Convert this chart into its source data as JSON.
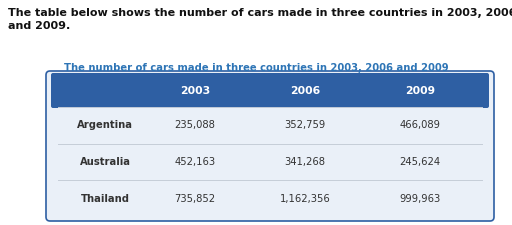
{
  "title": "The number of cars made in three countries in 2003, 2006 and 2009",
  "desc_line1": "The table below shows the number of cars made in three countries in 2003, 2006",
  "desc_line2": "and 2009.",
  "header": [
    "",
    "2003",
    "2006",
    "2009"
  ],
  "rows": [
    [
      "Argentina",
      "235,088",
      "352,759",
      "466,089"
    ],
    [
      "Australia",
      "452,163",
      "341,268",
      "245,624"
    ],
    [
      "Thailand",
      "735,852",
      "1,162,356",
      "999,963"
    ]
  ],
  "header_bg": "#2E5FA3",
  "header_text_color": "#FFFFFF",
  "row_divider_color": "#C5CDD8",
  "table_border_color": "#2E5FA3",
  "table_outer_bg": "#EAF0F8",
  "data_text_color": "#333333",
  "title_color": "#2E75B6",
  "desc_text_color": "#111111",
  "font_size_desc": 8.0,
  "font_size_title": 7.2,
  "font_size_header": 7.8,
  "font_size_data": 7.2
}
